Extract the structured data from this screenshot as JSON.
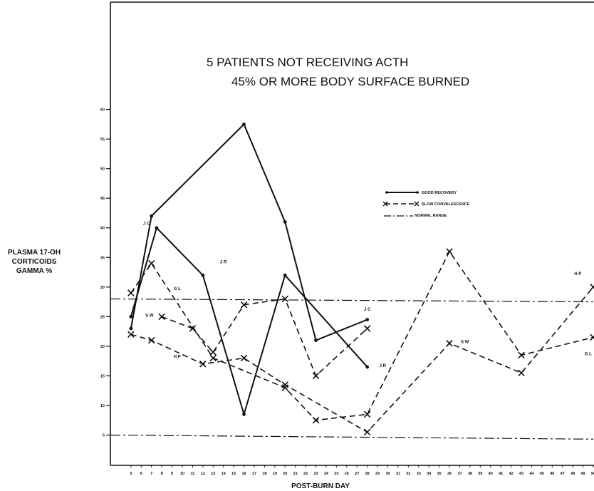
{
  "chart_data": {
    "type": "line",
    "title_line1": "5 PATIENTS NOT RECEIVING ACTH",
    "title_line2": "45% OR MORE BODY SURFACE BURNED",
    "xlabel": "POST-BURN DAY",
    "ylabel_lines": [
      "PLASMA 17-OH",
      "CORTICOIDS",
      "GAMMA %"
    ],
    "xlim": [
      3,
      50
    ],
    "ylim": [
      0,
      62
    ],
    "x_ticks": [
      5,
      6,
      7,
      8,
      9,
      10,
      11,
      12,
      13,
      14,
      15,
      16,
      17,
      18,
      19,
      20,
      21,
      22,
      23,
      24,
      25,
      26,
      27,
      28,
      29,
      30,
      31,
      32,
      33,
      34,
      35,
      36,
      37,
      38,
      39,
      40,
      41,
      42,
      43,
      44,
      45,
      46,
      47,
      48,
      49,
      50
    ],
    "y_ticks": [
      5,
      10,
      15,
      20,
      25,
      30,
      35,
      40,
      45,
      50,
      55,
      60
    ],
    "legend": [
      {
        "label": "GOOD RECOVERY",
        "style": "solid-dot"
      },
      {
        "label": "SLOW CONVALESCENCE",
        "style": "dashed-x"
      },
      {
        "label": "NORMAL RANGE",
        "style": "dashdot"
      }
    ],
    "normal_range": [
      {
        "x": [
          3,
          50
        ],
        "y": [
          28,
          27.5
        ]
      },
      {
        "x": [
          3,
          50
        ],
        "y": [
          5,
          4.3
        ]
      }
    ],
    "series": [
      {
        "name": "J C",
        "group": "GOOD RECOVERY",
        "x": [
          5,
          7,
          16,
          20,
          23,
          28
        ],
        "y": [
          23,
          42,
          57.5,
          41,
          21,
          24.5
        ]
      },
      {
        "name": "J R",
        "group": "GOOD RECOVERY",
        "x": [
          5,
          7.5,
          12,
          16,
          20,
          28
        ],
        "y": [
          25,
          40,
          32,
          8.5,
          32,
          16.5
        ]
      },
      {
        "name": "G L",
        "group": "SLOW CONVALESCENCE",
        "x": [
          5,
          7,
          13,
          20,
          23,
          28,
          36,
          43,
          50
        ],
        "y": [
          29,
          34,
          18,
          13,
          7.5,
          8.5,
          36,
          18.5,
          21.5
        ]
      },
      {
        "name": "S W",
        "group": "SLOW CONVALESCENCE",
        "x": [
          8,
          11,
          13,
          16,
          20,
          23,
          28
        ],
        "y": [
          25,
          23,
          19,
          27,
          28,
          15,
          23
        ]
      },
      {
        "name": "H P",
        "group": "SLOW CONVALESCENCE",
        "x": [
          5,
          7,
          12,
          16,
          20,
          28,
          36,
          43,
          50
        ],
        "y": [
          22,
          21,
          17,
          18,
          13.5,
          5.5,
          20.5,
          15.5,
          30
        ]
      }
    ],
    "labels": [
      {
        "text": "J C",
        "x": 6.5,
        "y": 40.5
      },
      {
        "text": "J R",
        "x": 14,
        "y": 34
      },
      {
        "text": "G L",
        "x": 9.5,
        "y": 29.5
      },
      {
        "text": "S W",
        "x": 6.8,
        "y": 25
      },
      {
        "text": "H P",
        "x": 9.5,
        "y": 18
      },
      {
        "text": "J C",
        "x": 28,
        "y": 26
      },
      {
        "text": "J R",
        "x": 29.5,
        "y": 16.5
      },
      {
        "text": "S W",
        "x": 37.5,
        "y": 20.5
      },
      {
        "text": "H P",
        "x": 48.5,
        "y": 32
      },
      {
        "text": "G L",
        "x": 49.5,
        "y": 18.5
      }
    ],
    "grid": false
  }
}
